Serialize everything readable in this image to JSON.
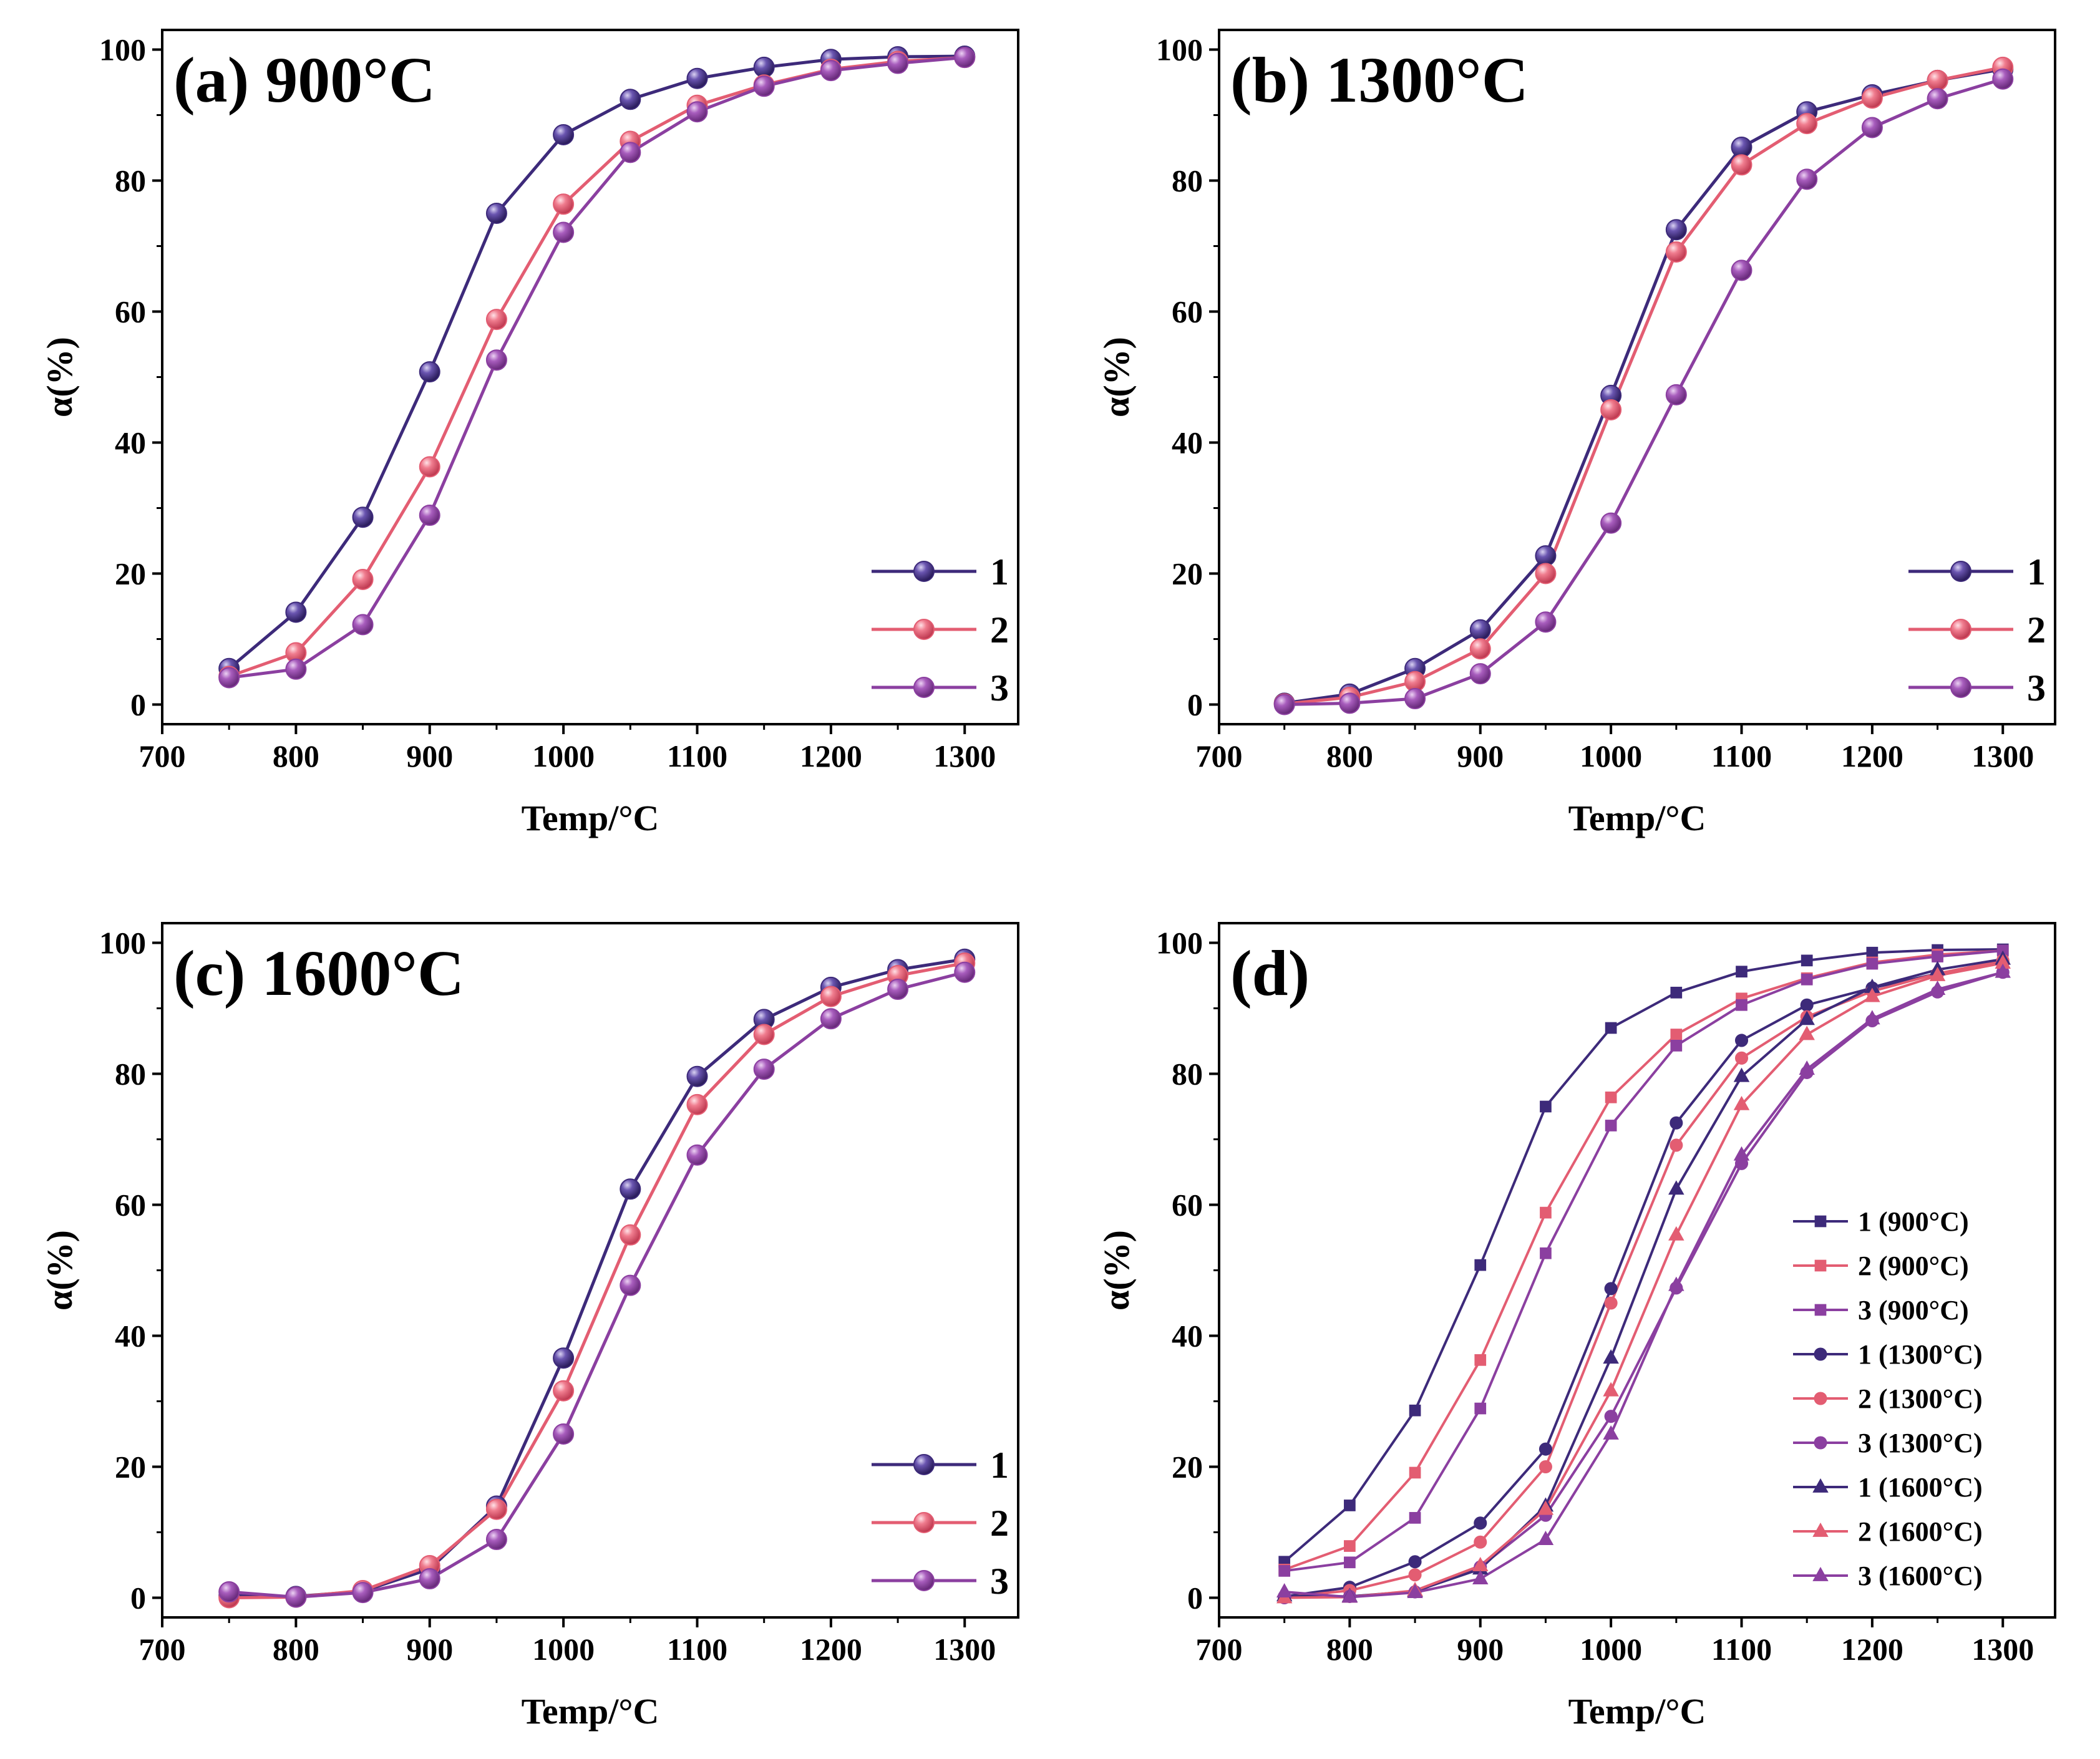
{
  "colors": {
    "s1": "#3d2a7a",
    "s2": "#e35d72",
    "s3": "#8b3fa0"
  },
  "chart_data": [
    {
      "id": "a",
      "type": "line",
      "title": "(a) 900°C",
      "xlabel": "Temp/°C",
      "ylabel": "α(%)",
      "xlim": [
        700,
        1340
      ],
      "ylim": [
        -3,
        103
      ],
      "xticks": [
        700,
        800,
        900,
        1000,
        1100,
        1200,
        1300
      ],
      "yticks": [
        0,
        20,
        40,
        60,
        80,
        100
      ],
      "grid": false,
      "legend": "bottom-right",
      "x": [
        750,
        800,
        850,
        900,
        950,
        1000,
        1050,
        1100,
        1150,
        1200,
        1250,
        1300
      ],
      "series": [
        {
          "name": "1",
          "marker": "sphere",
          "color": "#3d2a7a",
          "values": [
            5.5,
            14.1,
            28.6,
            50.8,
            75.0,
            87.0,
            92.4,
            95.6,
            97.3,
            98.5,
            98.9,
            99.0
          ]
        },
        {
          "name": "2",
          "marker": "sphere",
          "color": "#e35d72",
          "values": [
            4.3,
            7.9,
            19.1,
            36.3,
            58.8,
            76.4,
            86.0,
            91.5,
            94.6,
            97.0,
            98.2,
            98.8
          ]
        },
        {
          "name": "3",
          "marker": "sphere",
          "color": "#8b3fa0",
          "values": [
            4.1,
            5.4,
            12.2,
            28.9,
            52.6,
            72.1,
            84.3,
            90.5,
            94.4,
            96.8,
            97.9,
            98.8
          ]
        }
      ]
    },
    {
      "id": "b",
      "type": "line",
      "title": "(b) 1300°C",
      "xlabel": "Temp/°C",
      "ylabel": "α(%)",
      "xlim": [
        700,
        1340
      ],
      "ylim": [
        -3,
        103
      ],
      "xticks": [
        700,
        800,
        900,
        1000,
        1100,
        1200,
        1300
      ],
      "yticks": [
        0,
        20,
        40,
        60,
        80,
        100
      ],
      "grid": false,
      "legend": "bottom-right",
      "x": [
        750,
        800,
        850,
        900,
        950,
        1000,
        1050,
        1100,
        1150,
        1200,
        1250,
        1300
      ],
      "series": [
        {
          "name": "1",
          "marker": "sphere",
          "color": "#3d2a7a",
          "values": [
            0.2,
            1.6,
            5.5,
            11.4,
            22.7,
            47.2,
            72.5,
            85.1,
            90.5,
            93.1,
            95.3,
            97.0
          ]
        },
        {
          "name": "2",
          "marker": "sphere",
          "color": "#e35d72",
          "values": [
            0.1,
            1.1,
            3.5,
            8.5,
            20.0,
            45.0,
            69.1,
            82.4,
            88.7,
            92.6,
            95.3,
            97.3
          ]
        },
        {
          "name": "3",
          "marker": "sphere",
          "color": "#8b3fa0",
          "values": [
            0.0,
            0.2,
            0.9,
            4.7,
            12.6,
            27.7,
            47.3,
            66.3,
            80.2,
            88.1,
            92.5,
            95.5
          ]
        }
      ]
    },
    {
      "id": "c",
      "type": "line",
      "title": "(c) 1600°C",
      "xlabel": "Temp/°C",
      "ylabel": "α(%)",
      "xlim": [
        700,
        1340
      ],
      "ylim": [
        -3,
        103
      ],
      "xticks": [
        700,
        800,
        900,
        1000,
        1100,
        1200,
        1300
      ],
      "yticks": [
        0,
        20,
        40,
        60,
        80,
        100
      ],
      "grid": false,
      "legend": "bottom-right",
      "x": [
        750,
        800,
        850,
        900,
        950,
        1000,
        1050,
        1100,
        1150,
        1200,
        1250,
        1300
      ],
      "series": [
        {
          "name": "1",
          "marker": "sphere",
          "color": "#3d2a7a",
          "values": [
            0.3,
            0.2,
            1.0,
            4.4,
            14.0,
            36.6,
            62.4,
            79.6,
            88.3,
            93.2,
            95.9,
            97.5
          ]
        },
        {
          "name": "2",
          "marker": "sphere",
          "color": "#e35d72",
          "values": [
            0.0,
            0.1,
            1.1,
            4.9,
            13.5,
            31.6,
            55.4,
            75.3,
            86.0,
            91.8,
            95.0,
            96.9
          ]
        },
        {
          "name": "3",
          "marker": "sphere",
          "color": "#8b3fa0",
          "values": [
            0.9,
            0.1,
            0.8,
            2.9,
            8.9,
            25.0,
            47.7,
            67.6,
            80.7,
            88.4,
            92.9,
            95.5
          ]
        }
      ]
    },
    {
      "id": "d",
      "type": "line",
      "title": "(d)",
      "xlabel": "Temp/°C",
      "ylabel": "α(%)",
      "xlim": [
        700,
        1340
      ],
      "ylim": [
        -3,
        103
      ],
      "xticks": [
        700,
        800,
        900,
        1000,
        1100,
        1200,
        1300
      ],
      "yticks": [
        0,
        20,
        40,
        60,
        80,
        100
      ],
      "grid": false,
      "legend": "right",
      "x": [
        750,
        800,
        850,
        900,
        950,
        1000,
        1050,
        1100,
        1150,
        1200,
        1250,
        1300
      ],
      "series": [
        {
          "name": "1 (900°C)",
          "marker": "square",
          "color": "#3d2a7a",
          "values": [
            5.5,
            14.1,
            28.6,
            50.8,
            75.0,
            87.0,
            92.4,
            95.6,
            97.3,
            98.5,
            98.9,
            99.0
          ]
        },
        {
          "name": "2 (900°C)",
          "marker": "square",
          "color": "#e35d72",
          "values": [
            4.3,
            7.9,
            19.1,
            36.3,
            58.8,
            76.4,
            86.0,
            91.5,
            94.6,
            97.0,
            98.2,
            98.8
          ]
        },
        {
          "name": "3 (900°C)",
          "marker": "square",
          "color": "#8b3fa0",
          "values": [
            4.1,
            5.4,
            12.2,
            28.9,
            52.6,
            72.1,
            84.3,
            90.5,
            94.4,
            96.8,
            97.9,
            98.8
          ]
        },
        {
          "name": "1 (1300°C)",
          "marker": "circle",
          "color": "#3d2a7a",
          "values": [
            0.2,
            1.6,
            5.5,
            11.4,
            22.7,
            47.2,
            72.5,
            85.1,
            90.5,
            93.1,
            95.3,
            97.0
          ]
        },
        {
          "name": "2 (1300°C)",
          "marker": "circle",
          "color": "#e35d72",
          "values": [
            0.1,
            1.1,
            3.5,
            8.5,
            20.0,
            45.0,
            69.1,
            82.4,
            88.7,
            92.6,
            95.3,
            97.3
          ]
        },
        {
          "name": "3 (1300°C)",
          "marker": "circle",
          "color": "#8b3fa0",
          "values": [
            0.0,
            0.2,
            0.9,
            4.7,
            12.6,
            27.7,
            47.3,
            66.3,
            80.2,
            88.1,
            92.5,
            95.5
          ]
        },
        {
          "name": "1 (1600°C)",
          "marker": "triangle",
          "color": "#3d2a7a",
          "values": [
            0.3,
            0.2,
            1.0,
            4.4,
            14.0,
            36.6,
            62.4,
            79.6,
            88.3,
            93.2,
            95.9,
            97.5
          ]
        },
        {
          "name": "2 (1600°C)",
          "marker": "triangle",
          "color": "#e35d72",
          "values": [
            0.0,
            0.1,
            1.1,
            4.9,
            13.5,
            31.6,
            55.4,
            75.3,
            86.0,
            91.8,
            95.0,
            96.9
          ]
        },
        {
          "name": "3 (1600°C)",
          "marker": "triangle",
          "color": "#8b3fa0",
          "values": [
            0.9,
            0.1,
            0.8,
            2.9,
            8.9,
            25.0,
            47.7,
            67.6,
            80.7,
            88.4,
            92.9,
            95.5
          ]
        }
      ]
    }
  ]
}
